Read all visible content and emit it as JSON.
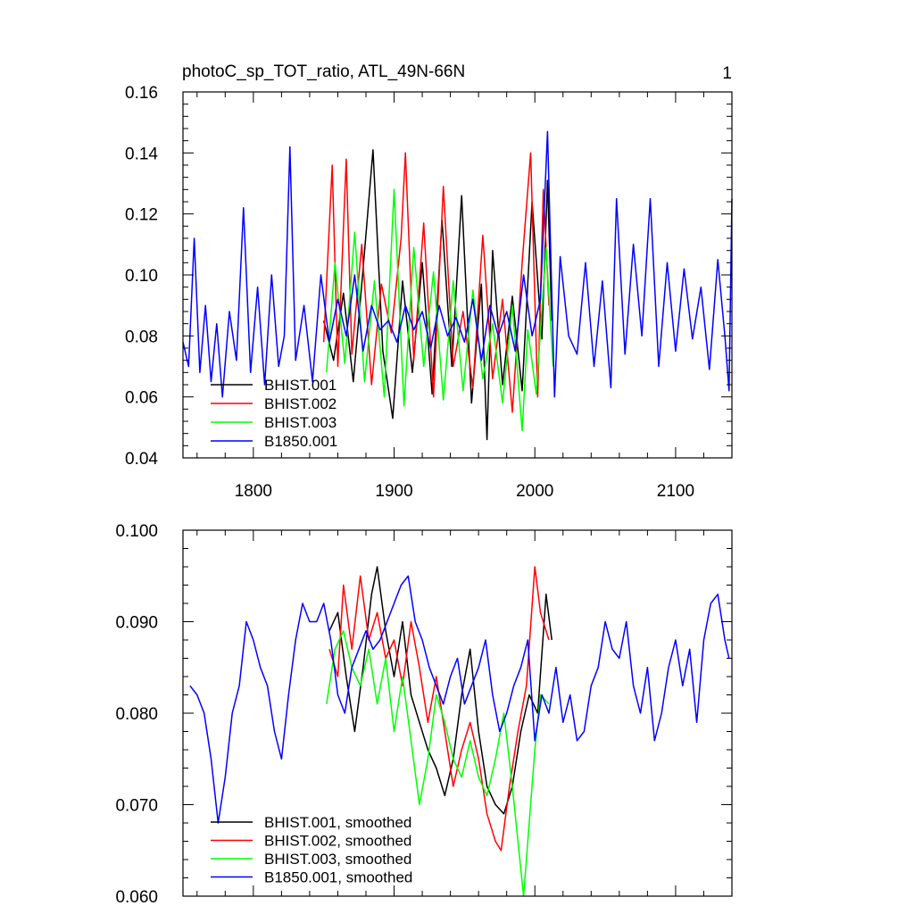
{
  "chart_data": [
    {
      "type": "line",
      "title": "photoC_sp_TOT_ratio, ATL_49N-66N",
      "right_label": "1",
      "xlabel": "",
      "ylabel": "",
      "xlim": [
        1750,
        2140
      ],
      "ylim": [
        0.04,
        0.16
      ],
      "xticks": [
        1800,
        1900,
        2000,
        2100
      ],
      "xtick_labels": [
        "1800",
        "1900",
        "2000",
        "2100"
      ],
      "yticks": [
        0.04,
        0.06,
        0.08,
        0.1,
        0.12,
        0.14,
        0.16
      ],
      "ytick_labels": [
        "0.04",
        "0.06",
        "0.08",
        "0.10",
        "0.12",
        "0.14",
        "0.16"
      ],
      "legend_position": "bottom-left",
      "series": [
        {
          "name": "BHIST.001",
          "color": "#000000",
          "x": [
            1850,
            1857,
            1864,
            1871,
            1878,
            1885,
            1892,
            1899,
            1906,
            1913,
            1920,
            1927,
            1934,
            1941,
            1948,
            1955,
            1962,
            1966,
            1970,
            1977,
            1984,
            1991,
            1998,
            2005,
            2009,
            2012
          ],
          "values": [
            0.085,
            0.072,
            0.094,
            0.065,
            0.102,
            0.141,
            0.075,
            0.053,
            0.098,
            0.068,
            0.104,
            0.061,
            0.118,
            0.07,
            0.126,
            0.058,
            0.097,
            0.046,
            0.108,
            0.064,
            0.093,
            0.062,
            0.124,
            0.079,
            0.131,
            0.085
          ]
        },
        {
          "name": "BHIST.002",
          "color": "#ff0000",
          "x": [
            1850,
            1856,
            1860,
            1866,
            1870,
            1877,
            1884,
            1891,
            1898,
            1905,
            1908,
            1914,
            1921,
            1928,
            1935,
            1942,
            1949,
            1956,
            1963,
            1970,
            1977,
            1984,
            1991,
            1997,
            2002,
            2006,
            2010
          ],
          "values": [
            0.078,
            0.136,
            0.07,
            0.138,
            0.074,
            0.11,
            0.064,
            0.097,
            0.081,
            0.112,
            0.14,
            0.072,
            0.117,
            0.06,
            0.129,
            0.07,
            0.088,
            0.063,
            0.113,
            0.066,
            0.092,
            0.055,
            0.104,
            0.14,
            0.06,
            0.128,
            0.09
          ]
        },
        {
          "name": "BHIST.003",
          "color": "#00ff00",
          "x": [
            1852,
            1858,
            1865,
            1872,
            1879,
            1886,
            1893,
            1900,
            1907,
            1914,
            1921,
            1928,
            1935,
            1942,
            1949,
            1956,
            1963,
            1970,
            1977,
            1984,
            1991,
            1995,
            2001,
            2008,
            2013
          ],
          "values": [
            0.068,
            0.104,
            0.071,
            0.114,
            0.065,
            0.098,
            0.06,
            0.128,
            0.057,
            0.109,
            0.07,
            0.101,
            0.059,
            0.098,
            0.062,
            0.095,
            0.066,
            0.084,
            0.058,
            0.09,
            0.049,
            0.082,
            0.061,
            0.109,
            0.07
          ]
        },
        {
          "name": "B1850.001",
          "color": "#0000ff",
          "x": [
            1750,
            1754,
            1758,
            1762,
            1766,
            1770,
            1774,
            1778,
            1783,
            1788,
            1793,
            1798,
            1803,
            1808,
            1813,
            1818,
            1822,
            1826,
            1830,
            1836,
            1842,
            1848,
            1854,
            1860,
            1866,
            1872,
            1878,
            1884,
            1890,
            1896,
            1902,
            1908,
            1914,
            1920,
            1926,
            1932,
            1938,
            1944,
            1950,
            1956,
            1962,
            1968,
            1974,
            1980,
            1986,
            1992,
            1998,
            2004,
            2009,
            2014,
            2018,
            2024,
            2030,
            2036,
            2042,
            2048,
            2054,
            2058,
            2064,
            2070,
            2076,
            2082,
            2088,
            2094,
            2100,
            2106,
            2112,
            2118,
            2124,
            2130,
            2135,
            2138,
            2140
          ],
          "values": [
            0.078,
            0.07,
            0.112,
            0.068,
            0.09,
            0.065,
            0.084,
            0.06,
            0.088,
            0.072,
            0.122,
            0.068,
            0.096,
            0.064,
            0.1,
            0.07,
            0.08,
            0.142,
            0.072,
            0.09,
            0.065,
            0.1,
            0.078,
            0.092,
            0.08,
            0.1,
            0.075,
            0.09,
            0.082,
            0.085,
            0.078,
            0.09,
            0.082,
            0.088,
            0.076,
            0.09,
            0.08,
            0.086,
            0.078,
            0.092,
            0.072,
            0.09,
            0.08,
            0.088,
            0.075,
            0.1,
            0.08,
            0.092,
            0.147,
            0.06,
            0.106,
            0.08,
            0.074,
            0.104,
            0.07,
            0.098,
            0.063,
            0.125,
            0.074,
            0.11,
            0.08,
            0.125,
            0.07,
            0.104,
            0.075,
            0.102,
            0.079,
            0.096,
            0.069,
            0.105,
            0.08,
            0.062,
            0.125
          ]
        }
      ]
    },
    {
      "type": "line",
      "title": "",
      "xlabel": "",
      "ylabel": "",
      "xlim": [
        1750,
        2140
      ],
      "ylim": [
        0.06,
        0.1
      ],
      "xticks": [
        1800,
        1900,
        2000,
        2100
      ],
      "yticks": [
        0.06,
        0.07,
        0.08,
        0.09,
        0.1
      ],
      "ytick_labels": [
        "0.060",
        "0.070",
        "0.080",
        "0.090",
        "0.100"
      ],
      "legend_position": "bottom-left",
      "series": [
        {
          "name": "BHIST.001, smoothed",
          "color": "#000000",
          "x": [
            1854,
            1860,
            1866,
            1872,
            1878,
            1884,
            1888,
            1894,
            1900,
            1906,
            1912,
            1918,
            1924,
            1930,
            1936,
            1942,
            1948,
            1954,
            1960,
            1966,
            1972,
            1978,
            1984,
            1990,
            1996,
            2002,
            2008,
            2012
          ],
          "values": [
            0.089,
            0.091,
            0.084,
            0.078,
            0.085,
            0.093,
            0.096,
            0.089,
            0.084,
            0.09,
            0.082,
            0.079,
            0.076,
            0.074,
            0.071,
            0.075,
            0.082,
            0.087,
            0.078,
            0.072,
            0.07,
            0.069,
            0.072,
            0.078,
            0.082,
            0.08,
            0.093,
            0.088
          ]
        },
        {
          "name": "BHIST.002, smoothed",
          "color": "#ff0000",
          "x": [
            1854,
            1860,
            1864,
            1870,
            1876,
            1882,
            1888,
            1894,
            1900,
            1906,
            1912,
            1918,
            1924,
            1930,
            1936,
            1942,
            1948,
            1954,
            1960,
            1966,
            1972,
            1976,
            1982,
            1988,
            1994,
            2000,
            2004,
            2010
          ],
          "values": [
            0.087,
            0.084,
            0.094,
            0.087,
            0.095,
            0.088,
            0.091,
            0.086,
            0.088,
            0.083,
            0.09,
            0.085,
            0.079,
            0.084,
            0.078,
            0.072,
            0.076,
            0.079,
            0.075,
            0.069,
            0.066,
            0.065,
            0.072,
            0.078,
            0.083,
            0.096,
            0.091,
            0.088
          ]
        },
        {
          "name": "BHIST.003, smoothed",
          "color": "#00ff00",
          "x": [
            1852,
            1858,
            1864,
            1870,
            1876,
            1882,
            1888,
            1894,
            1900,
            1906,
            1912,
            1918,
            1924,
            1930,
            1936,
            1942,
            1948,
            1954,
            1960,
            1966,
            1972,
            1978,
            1984,
            1988,
            1992,
            1996,
            2000,
            2004,
            2010
          ],
          "values": [
            0.081,
            0.087,
            0.089,
            0.085,
            0.083,
            0.087,
            0.081,
            0.086,
            0.078,
            0.084,
            0.077,
            0.07,
            0.075,
            0.082,
            0.079,
            0.075,
            0.073,
            0.077,
            0.073,
            0.071,
            0.075,
            0.08,
            0.072,
            0.066,
            0.06,
            0.068,
            0.076,
            0.082,
            0.081
          ]
        },
        {
          "name": "B1850.001, smoothed",
          "color": "#0000ff",
          "x": [
            1755,
            1760,
            1765,
            1770,
            1775,
            1780,
            1785,
            1790,
            1795,
            1800,
            1805,
            1810,
            1815,
            1820,
            1825,
            1830,
            1835,
            1840,
            1845,
            1850,
            1855,
            1860,
            1865,
            1870,
            1875,
            1880,
            1885,
            1890,
            1895,
            1900,
            1905,
            1910,
            1915,
            1920,
            1925,
            1930,
            1935,
            1940,
            1945,
            1950,
            1955,
            1960,
            1965,
            1970,
            1975,
            1980,
            1985,
            1990,
            1995,
            2000,
            2005,
            2010,
            2015,
            2020,
            2025,
            2030,
            2035,
            2040,
            2045,
            2050,
            2055,
            2060,
            2065,
            2070,
            2075,
            2080,
            2085,
            2090,
            2095,
            2100,
            2105,
            2110,
            2115,
            2120,
            2125,
            2130,
            2135,
            2138
          ],
          "values": [
            0.083,
            0.082,
            0.08,
            0.075,
            0.068,
            0.073,
            0.08,
            0.083,
            0.09,
            0.088,
            0.085,
            0.083,
            0.078,
            0.075,
            0.082,
            0.088,
            0.092,
            0.09,
            0.09,
            0.092,
            0.088,
            0.082,
            0.08,
            0.085,
            0.087,
            0.089,
            0.087,
            0.088,
            0.09,
            0.092,
            0.094,
            0.095,
            0.09,
            0.088,
            0.085,
            0.083,
            0.081,
            0.084,
            0.086,
            0.081,
            0.083,
            0.085,
            0.088,
            0.082,
            0.078,
            0.08,
            0.083,
            0.085,
            0.088,
            0.077,
            0.082,
            0.08,
            0.085,
            0.079,
            0.082,
            0.077,
            0.078,
            0.083,
            0.085,
            0.09,
            0.087,
            0.086,
            0.09,
            0.083,
            0.08,
            0.085,
            0.077,
            0.08,
            0.085,
            0.088,
            0.083,
            0.087,
            0.079,
            0.088,
            0.092,
            0.093,
            0.088,
            0.086
          ]
        }
      ]
    }
  ]
}
